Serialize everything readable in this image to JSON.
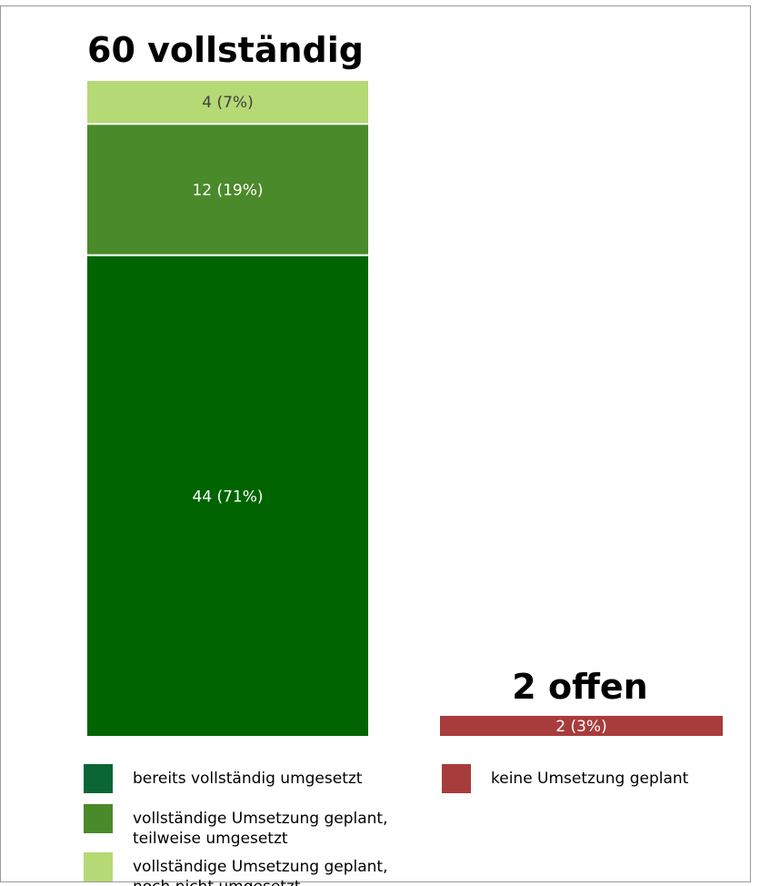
{
  "chart_data": {
    "type": "bar",
    "stacked": true,
    "groups": [
      {
        "title": "60 vollständig",
        "segments": [
          {
            "series": "bereits vollständig umgesetzt",
            "value": 44,
            "label": "44 (71%)",
            "color": "#006400",
            "text_color": "#ffffff"
          },
          {
            "series": "vollständige Umsetzung geplant, teilweise umgesetzt",
            "value": 12,
            "label": "12 (19%)",
            "color": "#4a8a2a",
            "text_color": "#ffffff"
          },
          {
            "series": "vollständige Umsetzung geplant, noch nicht umgesetzt",
            "value": 4,
            "label": "4 (7%)",
            "color": "#b5d974",
            "text_color": "#404040"
          }
        ]
      },
      {
        "title": "2 offen",
        "segments": [
          {
            "series": "keine Umsetzung geplant",
            "value": 2,
            "label": "2 (3%)",
            "color": "#a83c3c",
            "text_color": "#ffffff"
          }
        ]
      }
    ],
    "legend": [
      {
        "label_lines": [
          "bereits vollständig umgesetzt"
        ],
        "color": "#0a6634"
      },
      {
        "label_lines": [
          "vollständige Umsetzung geplant,",
          "teilweise umgesetzt"
        ],
        "color": "#4a8a2a"
      },
      {
        "label_lines": [
          "vollständige Umsetzung geplant,",
          "noch nicht umgesetzt"
        ],
        "color": "#b5d974"
      },
      {
        "label_lines": [
          "keine Umsetzung geplant"
        ],
        "color": "#a83c3c"
      }
    ],
    "legend_position": "bottom",
    "grid": false
  }
}
